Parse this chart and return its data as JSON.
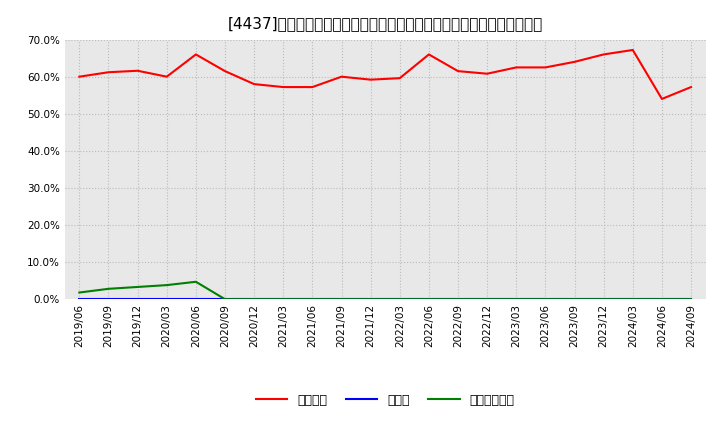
{
  "title": "[4437]　自己資本、のれん、繰延税金資産の総資産に対する比率の推移",
  "ylim": [
    0.0,
    0.7
  ],
  "yticks": [
    0.0,
    0.1,
    0.2,
    0.3,
    0.4,
    0.5,
    0.6,
    0.7
  ],
  "x_labels": [
    "2019/06",
    "2019/09",
    "2019/12",
    "2020/03",
    "2020/06",
    "2020/09",
    "2020/12",
    "2021/03",
    "2021/06",
    "2021/09",
    "2021/12",
    "2022/03",
    "2022/06",
    "2022/09",
    "2022/12",
    "2023/03",
    "2023/06",
    "2023/09",
    "2023/12",
    "2024/03",
    "2024/06",
    "2024/09"
  ],
  "jikoshihon": [
    0.6,
    0.612,
    0.616,
    0.6,
    0.66,
    0.615,
    0.58,
    0.572,
    0.572,
    0.6,
    0.592,
    0.596,
    0.66,
    0.615,
    0.608,
    0.625,
    0.625,
    0.64,
    0.66,
    0.672,
    0.54,
    0.572
  ],
  "noren": [
    0.0,
    0.0,
    0.0,
    0.0,
    0.0,
    0.0,
    0.0,
    0.0,
    0.0,
    0.0,
    0.0,
    0.0,
    0.0,
    0.0,
    0.0,
    0.0,
    0.0,
    0.0,
    0.0,
    0.0,
    0.0,
    0.0
  ],
  "kurinobezeikinsisan": [
    0.018,
    0.028,
    0.033,
    0.038,
    0.047,
    0.0,
    0.0,
    0.0,
    0.0,
    0.0,
    0.0,
    0.0,
    0.0,
    0.0,
    0.0,
    0.0,
    0.0,
    0.0,
    0.0,
    0.0,
    0.0,
    0.0
  ],
  "jikoshihon_color": "#ff0000",
  "noren_color": "#0000ff",
  "kurinobezeikinsisan_color": "#008000",
  "bg_color": "#ffffff",
  "plot_bg_color": "#e8e8e8",
  "grid_color": "#bbbbbb",
  "legend_labels": [
    "自己資本",
    "のれん",
    "繰延税金資産"
  ],
  "title_fontsize": 11,
  "tick_fontsize": 7.5,
  "legend_fontsize": 9
}
